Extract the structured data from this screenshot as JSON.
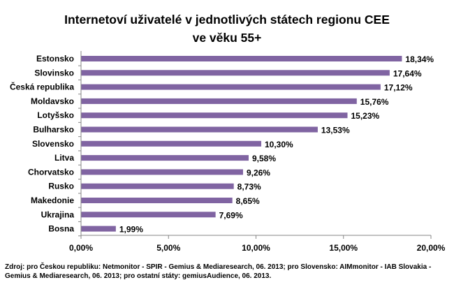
{
  "chart_data": {
    "type": "bar",
    "orientation": "horizontal",
    "title_line1": "Internetoví uživatelé v jednotlivých státech regionu CEE",
    "title_line2": "ve věku 55+",
    "categories": [
      "Estonsko",
      "Slovinsko",
      "Česká republika",
      "Moldavsko",
      "Lotyšsko",
      "Bulharsko",
      "Slovensko",
      "Litva",
      "Chorvatsko",
      "Rusko",
      "Makedonie",
      "Ukrajina",
      "Bosna"
    ],
    "values": [
      18.34,
      17.64,
      17.12,
      15.76,
      15.23,
      13.53,
      10.3,
      9.58,
      9.26,
      8.73,
      8.65,
      7.69,
      1.99
    ],
    "value_labels": [
      "18,34%",
      "17,64%",
      "17,12%",
      "15,76%",
      "15,23%",
      "13,53%",
      "10,30%",
      "9,58%",
      "9,26%",
      "8,73%",
      "8,65%",
      "7,69%",
      "1,99%"
    ],
    "xlim": [
      0,
      20
    ],
    "ticks": [
      0,
      5,
      10,
      15,
      20
    ],
    "tick_labels": [
      "0,00%",
      "5,00%",
      "10,00%",
      "15,00%",
      "20,00%"
    ],
    "bar_color": "#8064A2",
    "grid": false
  },
  "source_note": "Zdroj: pro Českou republiku:  Netmonitor  - SPIR - Gemius & Mediaresearch,  06. 2013; pro Slovensko: AIMmonitor  - IAB Slovakia - Gemius & Mediaresearch,  06. 2013; pro ostatní státy: gemiusAudience, 06. 2013."
}
